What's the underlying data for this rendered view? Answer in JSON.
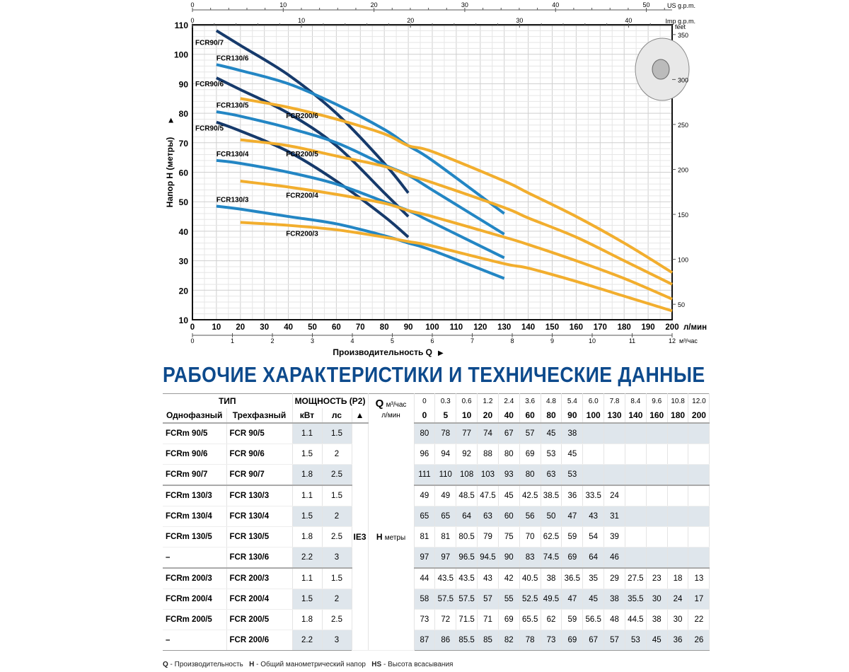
{
  "chart_data": {
    "type": "line",
    "xlabel": "Производительность Q",
    "ylabel": "Напор H (метры)",
    "x_unit": "л/мин",
    "xlim": [
      0,
      200
    ],
    "ylim": [
      10,
      110
    ],
    "x_ticks": [
      0,
      10,
      20,
      30,
      40,
      50,
      60,
      70,
      80,
      90,
      100,
      110,
      120,
      130,
      140,
      150,
      160,
      170,
      180,
      190,
      200
    ],
    "y_ticks": [
      10,
      20,
      30,
      40,
      50,
      60,
      70,
      80,
      90,
      100,
      110
    ],
    "right_axis": {
      "label": "feet",
      "ticks": [
        50,
        100,
        150,
        200,
        250,
        300,
        350
      ]
    },
    "top_axes": [
      {
        "label": "US g.p.m.",
        "ticks": [
          0,
          10,
          20,
          30,
          40,
          50
        ],
        "lpm_per_unit": 3.785
      },
      {
        "label": "Imp g.p.m.",
        "ticks": [
          0,
          10,
          20,
          30,
          40
        ],
        "lpm_per_unit": 4.546
      }
    ],
    "bottom_axis2": {
      "label": "м³/час",
      "ticks": [
        0,
        1,
        2,
        3,
        4,
        5,
        6,
        7,
        8,
        9,
        10,
        11,
        12
      ]
    },
    "grid": true,
    "series": [
      {
        "name": "FCR90/5",
        "color": "#163a6b",
        "x": [
          10,
          20,
          40,
          60,
          80,
          90
        ],
        "y": [
          77,
          74,
          67,
          57,
          45,
          38
        ]
      },
      {
        "name": "FCR90/6",
        "color": "#163a6b",
        "x": [
          10,
          20,
          40,
          60,
          80,
          90
        ],
        "y": [
          92,
          88,
          80,
          69,
          53,
          45
        ]
      },
      {
        "name": "FCR90/7",
        "color": "#163a6b",
        "x": [
          10,
          20,
          40,
          60,
          80,
          90
        ],
        "y": [
          108,
          103,
          93,
          80,
          63,
          53
        ]
      },
      {
        "name": "FCR130/3",
        "color": "#2386c4",
        "x": [
          10,
          20,
          40,
          60,
          80,
          90,
          100,
          130
        ],
        "y": [
          48.5,
          47.5,
          45,
          42.5,
          38.5,
          36,
          33.5,
          24
        ]
      },
      {
        "name": "FCR130/4",
        "color": "#2386c4",
        "x": [
          10,
          20,
          40,
          60,
          80,
          90,
          100,
          130
        ],
        "y": [
          64,
          63,
          60,
          56,
          50,
          47,
          43,
          31
        ]
      },
      {
        "name": "FCR130/5",
        "color": "#2386c4",
        "x": [
          10,
          20,
          40,
          60,
          80,
          90,
          100,
          130
        ],
        "y": [
          80.5,
          79,
          75,
          70,
          62.5,
          59,
          54,
          39
        ]
      },
      {
        "name": "FCR130/6",
        "color": "#2386c4",
        "x": [
          10,
          20,
          40,
          60,
          80,
          90,
          100,
          130
        ],
        "y": [
          96.5,
          94.5,
          90,
          83,
          74.5,
          69,
          64,
          46
        ]
      },
      {
        "name": "FCR200/3",
        "color": "#f2ae2e",
        "x": [
          20,
          40,
          60,
          80,
          90,
          100,
          130,
          140,
          160,
          180,
          200
        ],
        "y": [
          43,
          42,
          40.5,
          38,
          36.5,
          35,
          29,
          27.5,
          23,
          18,
          13
        ]
      },
      {
        "name": "FCR200/4",
        "color": "#f2ae2e",
        "x": [
          20,
          40,
          60,
          80,
          90,
          100,
          130,
          140,
          160,
          180,
          200
        ],
        "y": [
          57,
          55,
          52.5,
          49.5,
          47,
          45,
          38,
          35.5,
          30,
          24,
          17
        ]
      },
      {
        "name": "FCR200/5",
        "color": "#f2ae2e",
        "x": [
          20,
          40,
          60,
          80,
          90,
          100,
          130,
          140,
          160,
          180,
          200
        ],
        "y": [
          71,
          69,
          65.5,
          62,
          59,
          56.5,
          48,
          44.5,
          38,
          30,
          22
        ]
      },
      {
        "name": "FCR200/6",
        "color": "#f2ae2e",
        "x": [
          20,
          40,
          60,
          80,
          90,
          100,
          130,
          140,
          160,
          180,
          200
        ],
        "y": [
          85,
          82,
          78,
          73,
          69,
          67,
          57,
          53,
          45,
          36,
          26
        ]
      }
    ]
  },
  "title": "РАБОЧИЕ ХАРАКТЕРИСТИКИ И ТЕХНИЧЕСКИЕ ДАННЫЕ",
  "table": {
    "h_type": "ТИП",
    "h_power": "МОЩНОСТЬ (P2)",
    "h_q": "Q",
    "h_q_m3": "м³/час",
    "h_q_lmin": "л/мин",
    "h_single": "Однофазный",
    "h_three": "Трехфазный",
    "h_kw": "кВт",
    "h_hp": "лс",
    "h_triangle": "▲",
    "q_m3": [
      "0",
      "0.3",
      "0.6",
      "1.2",
      "2.4",
      "3.6",
      "4.8",
      "5.4",
      "6.0",
      "7.8",
      "8.4",
      "9.6",
      "10.8",
      "12.0"
    ],
    "q_lmin": [
      "0",
      "5",
      "10",
      "20",
      "40",
      "60",
      "80",
      "90",
      "100",
      "130",
      "140",
      "160",
      "180",
      "200"
    ],
    "ie": "IE3",
    "h_label": "H",
    "h_unit": "метры",
    "rows": [
      {
        "single": "FCRm 90/5",
        "three": "FCR 90/5",
        "kw": "1.1",
        "hp": "1.5",
        "h": [
          "80",
          "78",
          "77",
          "74",
          "67",
          "57",
          "45",
          "38",
          "",
          "",
          "",
          "",
          "",
          ""
        ]
      },
      {
        "single": "FCRm 90/6",
        "three": "FCR 90/6",
        "kw": "1.5",
        "hp": "2",
        "h": [
          "96",
          "94",
          "92",
          "88",
          "80",
          "69",
          "53",
          "45",
          "",
          "",
          "",
          "",
          "",
          ""
        ]
      },
      {
        "single": "FCRm 90/7",
        "three": "FCR 90/7",
        "kw": "1.8",
        "hp": "2.5",
        "h": [
          "111",
          "110",
          "108",
          "103",
          "93",
          "80",
          "63",
          "53",
          "",
          "",
          "",
          "",
          "",
          ""
        ]
      },
      {
        "single": "FCRm 130/3",
        "three": "FCR 130/3",
        "kw": "1.1",
        "hp": "1.5",
        "h": [
          "49",
          "49",
          "48.5",
          "47.5",
          "45",
          "42.5",
          "38.5",
          "36",
          "33.5",
          "24",
          "",
          "",
          "",
          ""
        ]
      },
      {
        "single": "FCRm 130/4",
        "three": "FCR 130/4",
        "kw": "1.5",
        "hp": "2",
        "h": [
          "65",
          "65",
          "64",
          "63",
          "60",
          "56",
          "50",
          "47",
          "43",
          "31",
          "",
          "",
          "",
          ""
        ]
      },
      {
        "single": "FCRm 130/5",
        "three": "FCR 130/5",
        "kw": "1.8",
        "hp": "2.5",
        "h": [
          "81",
          "81",
          "80.5",
          "79",
          "75",
          "70",
          "62.5",
          "59",
          "54",
          "39",
          "",
          "",
          "",
          ""
        ]
      },
      {
        "single": "–",
        "three": "FCR 130/6",
        "kw": "2.2",
        "hp": "3",
        "h": [
          "97",
          "97",
          "96.5",
          "94.5",
          "90",
          "83",
          "74.5",
          "69",
          "64",
          "46",
          "",
          "",
          "",
          ""
        ]
      },
      {
        "single": "FCRm 200/3",
        "three": "FCR 200/3",
        "kw": "1.1",
        "hp": "1.5",
        "h": [
          "44",
          "43.5",
          "43.5",
          "43",
          "42",
          "40.5",
          "38",
          "36.5",
          "35",
          "29",
          "27.5",
          "23",
          "18",
          "13"
        ]
      },
      {
        "single": "FCRm 200/4",
        "three": "FCR 200/4",
        "kw": "1.5",
        "hp": "2",
        "h": [
          "58",
          "57.5",
          "57.5",
          "57",
          "55",
          "52.5",
          "49.5",
          "47",
          "45",
          "38",
          "35.5",
          "30",
          "24",
          "17"
        ]
      },
      {
        "single": "FCRm 200/5",
        "three": "FCR 200/5",
        "kw": "1.8",
        "hp": "2.5",
        "h": [
          "73",
          "72",
          "71.5",
          "71",
          "69",
          "65.5",
          "62",
          "59",
          "56.5",
          "48",
          "44.5",
          "38",
          "30",
          "22"
        ]
      },
      {
        "single": "–",
        "three": "FCR 200/6",
        "kw": "2.2",
        "hp": "3",
        "h": [
          "87",
          "86",
          "85.5",
          "85",
          "82",
          "78",
          "73",
          "69",
          "67",
          "57",
          "53",
          "45",
          "36",
          "26"
        ]
      }
    ]
  },
  "footnote": {
    "q": "Q",
    "q_text": " - Производительность   ",
    "h": "H",
    "h_text": " - Общий манометрический напор   ",
    "hs": "HS",
    "hs_text": " - Высота всасывания"
  }
}
